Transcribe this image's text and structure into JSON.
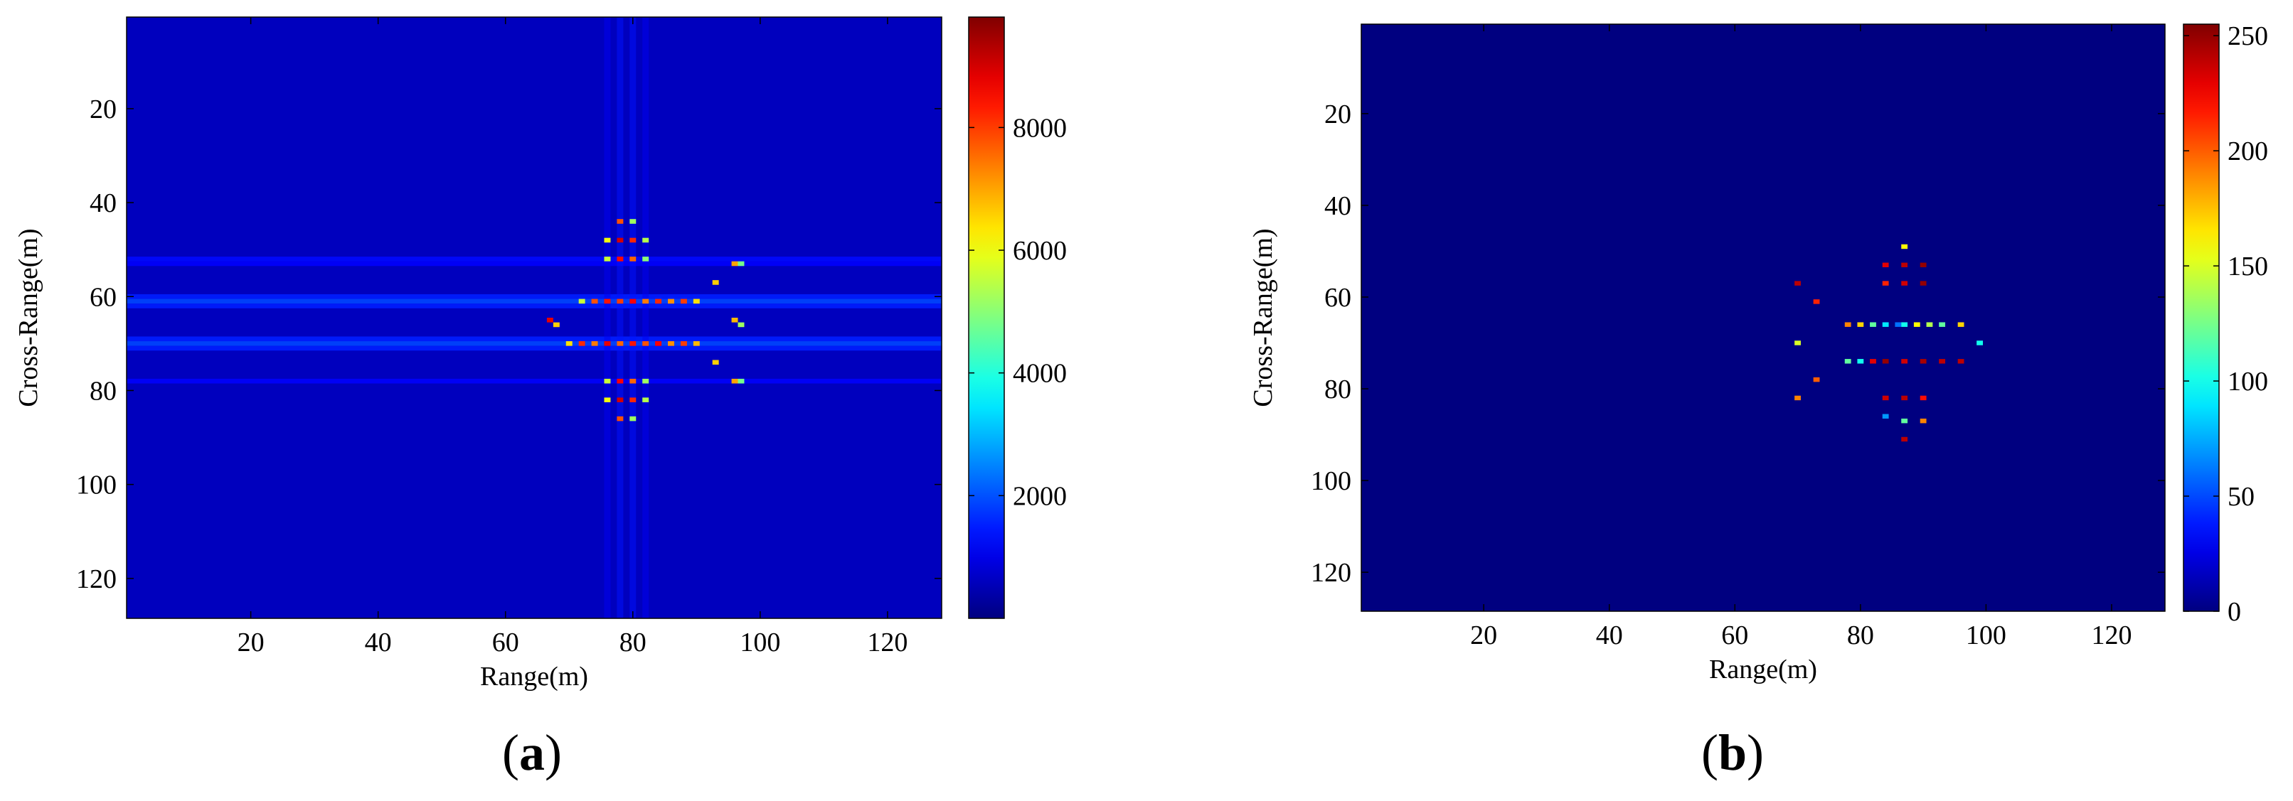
{
  "figure": {
    "panels": [
      {
        "id": "a",
        "caption_letter": "a"
      },
      {
        "id": "b",
        "caption_letter": "b"
      }
    ]
  },
  "chart_data": [
    {
      "type": "heatmap",
      "colormap": "jet",
      "xlabel": "Range(m)",
      "ylabel": "Cross-Range(m)",
      "xlim": [
        1,
        128
      ],
      "ylim": [
        1,
        128
      ],
      "y_reversed": true,
      "x_ticks": [
        20,
        40,
        60,
        80,
        100,
        120
      ],
      "y_ticks": [
        20,
        40,
        60,
        80,
        100,
        120
      ],
      "colorbar": {
        "range": [
          0,
          9800
        ],
        "ticks": [
          2000,
          4000,
          6000,
          8000
        ],
        "tick_labels": [
          "2000",
          "4000",
          "6000",
          "8000"
        ]
      },
      "background_value": 600,
      "horizontal_sidelobes": [
        {
          "y": 52,
          "value": 1300
        },
        {
          "y": 53,
          "value": 1200
        },
        {
          "y": 60,
          "value": 1500
        },
        {
          "y": 61,
          "value": 1900
        },
        {
          "y": 62,
          "value": 1500
        },
        {
          "y": 69,
          "value": 1500
        },
        {
          "y": 70,
          "value": 1900
        },
        {
          "y": 71,
          "value": 1500
        },
        {
          "y": 78,
          "value": 1200
        }
      ],
      "vertical_sidelobes": [
        {
          "x": 76,
          "value": 1100
        },
        {
          "x": 78,
          "value": 1400
        },
        {
          "x": 80,
          "value": 1400
        },
        {
          "x": 82,
          "value": 1100
        }
      ],
      "points": [
        {
          "x": 78,
          "y": 44,
          "value": 7800
        },
        {
          "x": 80,
          "y": 44,
          "value": 5200
        },
        {
          "x": 76,
          "y": 48,
          "value": 6000
        },
        {
          "x": 78,
          "y": 48,
          "value": 9000
        },
        {
          "x": 80,
          "y": 48,
          "value": 8200
        },
        {
          "x": 82,
          "y": 48,
          "value": 5400
        },
        {
          "x": 76,
          "y": 52,
          "value": 5600
        },
        {
          "x": 78,
          "y": 52,
          "value": 8500
        },
        {
          "x": 80,
          "y": 52,
          "value": 7600
        },
        {
          "x": 82,
          "y": 52,
          "value": 5000
        },
        {
          "x": 96,
          "y": 53,
          "value": 7000
        },
        {
          "x": 97,
          "y": 53,
          "value": 4800
        },
        {
          "x": 93,
          "y": 57,
          "value": 6600
        },
        {
          "x": 72,
          "y": 61,
          "value": 5600
        },
        {
          "x": 74,
          "y": 61,
          "value": 7800
        },
        {
          "x": 76,
          "y": 61,
          "value": 8400
        },
        {
          "x": 78,
          "y": 61,
          "value": 8000
        },
        {
          "x": 80,
          "y": 61,
          "value": 8600
        },
        {
          "x": 82,
          "y": 61,
          "value": 7400
        },
        {
          "x": 84,
          "y": 61,
          "value": 8200
        },
        {
          "x": 86,
          "y": 61,
          "value": 7200
        },
        {
          "x": 88,
          "y": 61,
          "value": 8000
        },
        {
          "x": 90,
          "y": 61,
          "value": 6400
        },
        {
          "x": 67,
          "y": 65,
          "value": 8800
        },
        {
          "x": 68,
          "y": 66,
          "value": 6600
        },
        {
          "x": 96,
          "y": 65,
          "value": 6800
        },
        {
          "x": 97,
          "y": 66,
          "value": 5200
        },
        {
          "x": 70,
          "y": 70,
          "value": 6400
        },
        {
          "x": 72,
          "y": 70,
          "value": 8200
        },
        {
          "x": 74,
          "y": 70,
          "value": 7400
        },
        {
          "x": 76,
          "y": 70,
          "value": 8800
        },
        {
          "x": 78,
          "y": 70,
          "value": 7600
        },
        {
          "x": 80,
          "y": 70,
          "value": 8400
        },
        {
          "x": 82,
          "y": 70,
          "value": 7800
        },
        {
          "x": 84,
          "y": 70,
          "value": 8600
        },
        {
          "x": 86,
          "y": 70,
          "value": 7200
        },
        {
          "x": 88,
          "y": 70,
          "value": 8000
        },
        {
          "x": 90,
          "y": 70,
          "value": 6800
        },
        {
          "x": 93,
          "y": 74,
          "value": 6600
        },
        {
          "x": 96,
          "y": 78,
          "value": 7000
        },
        {
          "x": 97,
          "y": 78,
          "value": 4800
        },
        {
          "x": 76,
          "y": 78,
          "value": 5600
        },
        {
          "x": 78,
          "y": 78,
          "value": 8600
        },
        {
          "x": 80,
          "y": 78,
          "value": 7600
        },
        {
          "x": 82,
          "y": 78,
          "value": 5200
        },
        {
          "x": 76,
          "y": 82,
          "value": 6000
        },
        {
          "x": 78,
          "y": 82,
          "value": 9000
        },
        {
          "x": 80,
          "y": 82,
          "value": 8200
        },
        {
          "x": 82,
          "y": 82,
          "value": 5400
        },
        {
          "x": 78,
          "y": 86,
          "value": 7800
        },
        {
          "x": 80,
          "y": 86,
          "value": 5200
        }
      ]
    },
    {
      "type": "heatmap",
      "colormap": "jet",
      "xlabel": "Range(m)",
      "ylabel": "Cross-Range(m)",
      "xlim": [
        1,
        128
      ],
      "ylim": [
        1,
        128
      ],
      "y_reversed": true,
      "x_ticks": [
        20,
        40,
        60,
        80,
        100,
        120
      ],
      "y_ticks": [
        20,
        40,
        60,
        80,
        100,
        120
      ],
      "colorbar": {
        "range": [
          0,
          255
        ],
        "ticks": [
          0,
          50,
          100,
          150,
          200,
          250
        ],
        "tick_labels": [
          "0",
          "50",
          "100",
          "150",
          "200",
          "250"
        ]
      },
      "background_value": 0,
      "horizontal_sidelobes": [],
      "vertical_sidelobes": [],
      "points": [
        {
          "x": 87,
          "y": 49,
          "value": 160
        },
        {
          "x": 84,
          "y": 53,
          "value": 230
        },
        {
          "x": 87,
          "y": 53,
          "value": 240
        },
        {
          "x": 90,
          "y": 53,
          "value": 250
        },
        {
          "x": 70,
          "y": 57,
          "value": 240
        },
        {
          "x": 84,
          "y": 57,
          "value": 215
        },
        {
          "x": 87,
          "y": 57,
          "value": 235
        },
        {
          "x": 90,
          "y": 57,
          "value": 250
        },
        {
          "x": 73,
          "y": 61,
          "value": 215
        },
        {
          "x": 78,
          "y": 66,
          "value": 190
        },
        {
          "x": 80,
          "y": 66,
          "value": 170
        },
        {
          "x": 82,
          "y": 66,
          "value": 120
        },
        {
          "x": 84,
          "y": 66,
          "value": 90
        },
        {
          "x": 86,
          "y": 66,
          "value": 60
        },
        {
          "x": 87,
          "y": 66,
          "value": 100
        },
        {
          "x": 89,
          "y": 66,
          "value": 160
        },
        {
          "x": 91,
          "y": 66,
          "value": 140
        },
        {
          "x": 93,
          "y": 66,
          "value": 120
        },
        {
          "x": 96,
          "y": 66,
          "value": 170
        },
        {
          "x": 70,
          "y": 70,
          "value": 150
        },
        {
          "x": 99,
          "y": 70,
          "value": 100
        },
        {
          "x": 78,
          "y": 74,
          "value": 120
        },
        {
          "x": 80,
          "y": 74,
          "value": 100
        },
        {
          "x": 82,
          "y": 74,
          "value": 230
        },
        {
          "x": 84,
          "y": 74,
          "value": 250
        },
        {
          "x": 87,
          "y": 74,
          "value": 235
        },
        {
          "x": 90,
          "y": 74,
          "value": 245
        },
        {
          "x": 93,
          "y": 74,
          "value": 240
        },
        {
          "x": 96,
          "y": 74,
          "value": 240
        },
        {
          "x": 73,
          "y": 78,
          "value": 200
        },
        {
          "x": 70,
          "y": 82,
          "value": 190
        },
        {
          "x": 84,
          "y": 82,
          "value": 235
        },
        {
          "x": 87,
          "y": 82,
          "value": 240
        },
        {
          "x": 90,
          "y": 82,
          "value": 220
        },
        {
          "x": 84,
          "y": 86,
          "value": 70
        },
        {
          "x": 87,
          "y": 87,
          "value": 120
        },
        {
          "x": 90,
          "y": 87,
          "value": 190
        },
        {
          "x": 87,
          "y": 91,
          "value": 240
        }
      ]
    }
  ]
}
